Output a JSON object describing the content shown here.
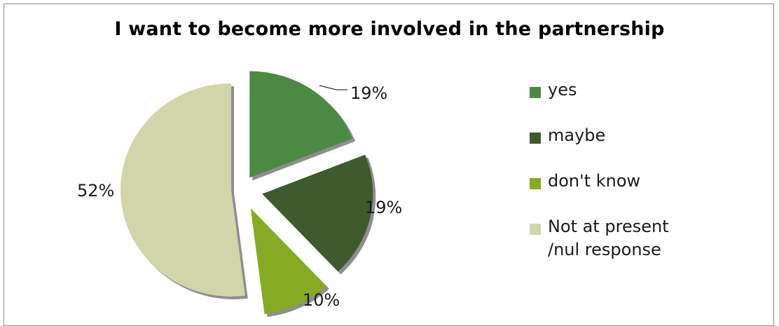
{
  "chart_data": {
    "type": "pie",
    "title": "I want to become more involved in the partnership",
    "categories": [
      "yes",
      "maybe",
      "don't know",
      "Not at present /nul response"
    ],
    "values": [
      19,
      19,
      10,
      52
    ],
    "data_labels": [
      "19%",
      "19%",
      "10%",
      "52%"
    ],
    "colors": [
      "#4b8a43",
      "#3f5a2d",
      "#86aa22",
      "#d1d5aa"
    ],
    "exploded": true,
    "legend_position": "right"
  }
}
